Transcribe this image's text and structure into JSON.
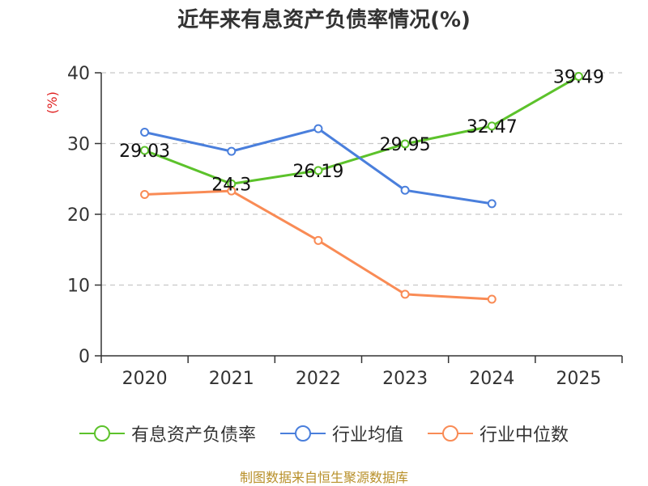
{
  "chart_data": {
    "type": "line",
    "title": "近年来有息资产负债率情况(%)",
    "ylabel": "(%)",
    "xlabel": "",
    "categories": [
      "2020",
      "2021",
      "2022",
      "2023",
      "2024",
      "2025"
    ],
    "ylim": [
      0,
      40
    ],
    "yticks": [
      0,
      10,
      20,
      30,
      40
    ],
    "grid": true,
    "legend_position": "bottom",
    "series": [
      {
        "name": "有息资产负债率",
        "color": "#5cc22b",
        "values": [
          29.03,
          24.3,
          26.19,
          29.95,
          32.47,
          39.49
        ],
        "labels": [
          "29.03",
          "24.3",
          "26.19",
          "29.95",
          "32.47",
          "39.49"
        ]
      },
      {
        "name": "行业均值",
        "color": "#4a7fdc",
        "values": [
          31.6,
          28.9,
          32.1,
          23.4,
          21.5,
          null
        ]
      },
      {
        "name": "行业中位数",
        "color": "#f98b55",
        "values": [
          22.8,
          23.3,
          16.3,
          8.7,
          8.0,
          null
        ]
      }
    ]
  },
  "source": "制图数据来自恒生聚源数据库"
}
